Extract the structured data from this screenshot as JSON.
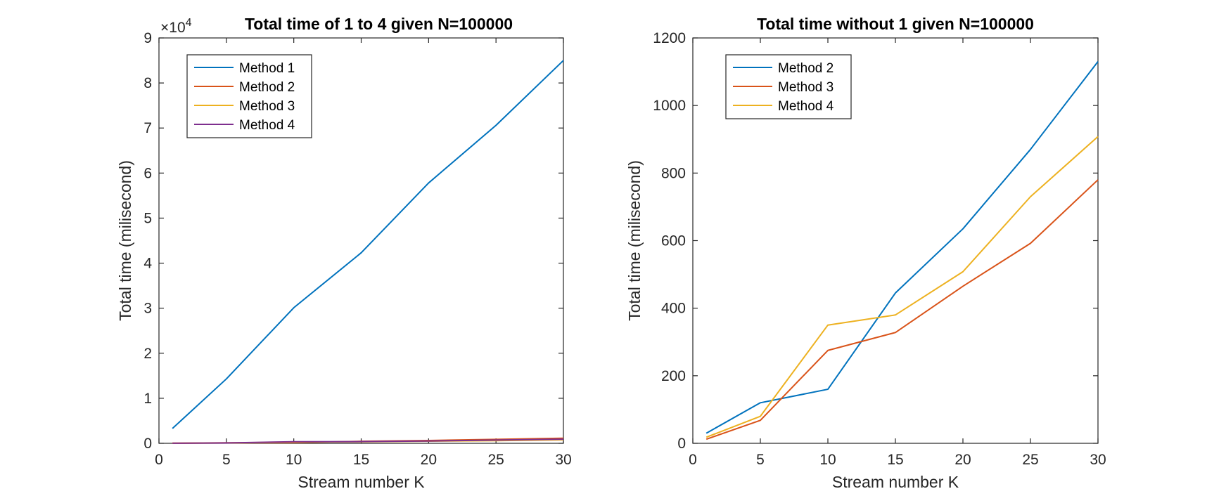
{
  "chart_data": [
    {
      "type": "line",
      "title": "Total time of 1 to 4 given N=100000",
      "xlabel": "Stream number K",
      "ylabel": "Total time (milisecond)",
      "xlim": [
        0,
        30
      ],
      "ylim": [
        0,
        90000
      ],
      "xticks": [
        0,
        5,
        10,
        15,
        20,
        25,
        30
      ],
      "yticks": [
        0,
        10000,
        20000,
        30000,
        40000,
        50000,
        60000,
        70000,
        80000,
        90000
      ],
      "ytick_labels": [
        "0",
        "1",
        "2",
        "3",
        "4",
        "5",
        "6",
        "7",
        "8",
        "9"
      ],
      "y_exponent": {
        "base": "×10",
        "power": "4"
      },
      "grid": false,
      "legend": "top-left",
      "x": [
        1,
        5,
        10,
        15,
        20,
        25,
        30
      ],
      "series": [
        {
          "name": "Method 1",
          "color": "#0072BD",
          "values": [
            3300,
            14300,
            30100,
            42300,
            57800,
            70600,
            85000
          ]
        },
        {
          "name": "Method 2",
          "color": "#D95319",
          "values": [
            30,
            120,
            160,
            440,
            630,
            870,
            1130
          ]
        },
        {
          "name": "Method 3",
          "color": "#EDB120",
          "values": [
            15,
            70,
            275,
            330,
            470,
            590,
            780
          ]
        },
        {
          "name": "Method 4",
          "color": "#7E2F8E",
          "values": [
            20,
            80,
            350,
            380,
            510,
            730,
            910
          ]
        }
      ]
    },
    {
      "type": "line",
      "title": "Total time without 1 given N=100000",
      "xlabel": "Stream number K",
      "ylabel": "Total time (milisecond)",
      "xlim": [
        0,
        30
      ],
      "ylim": [
        0,
        1200
      ],
      "xticks": [
        0,
        5,
        10,
        15,
        20,
        25,
        30
      ],
      "yticks": [
        0,
        200,
        400,
        600,
        800,
        1000,
        1200
      ],
      "ytick_labels": [
        "0",
        "200",
        "400",
        "600",
        "800",
        "1000",
        "1200"
      ],
      "grid": false,
      "legend": "top-left",
      "x": [
        1,
        5,
        10,
        15,
        20,
        25,
        30
      ],
      "series": [
        {
          "name": "Method 2",
          "color": "#0072BD",
          "values": [
            30,
            120,
            160,
            445,
            635,
            870,
            1130
          ]
        },
        {
          "name": "Method 3",
          "color": "#D95319",
          "values": [
            12,
            68,
            275,
            328,
            465,
            592,
            780
          ]
        },
        {
          "name": "Method 4",
          "color": "#EDB120",
          "values": [
            18,
            80,
            350,
            380,
            508,
            730,
            908
          ]
        }
      ]
    }
  ]
}
